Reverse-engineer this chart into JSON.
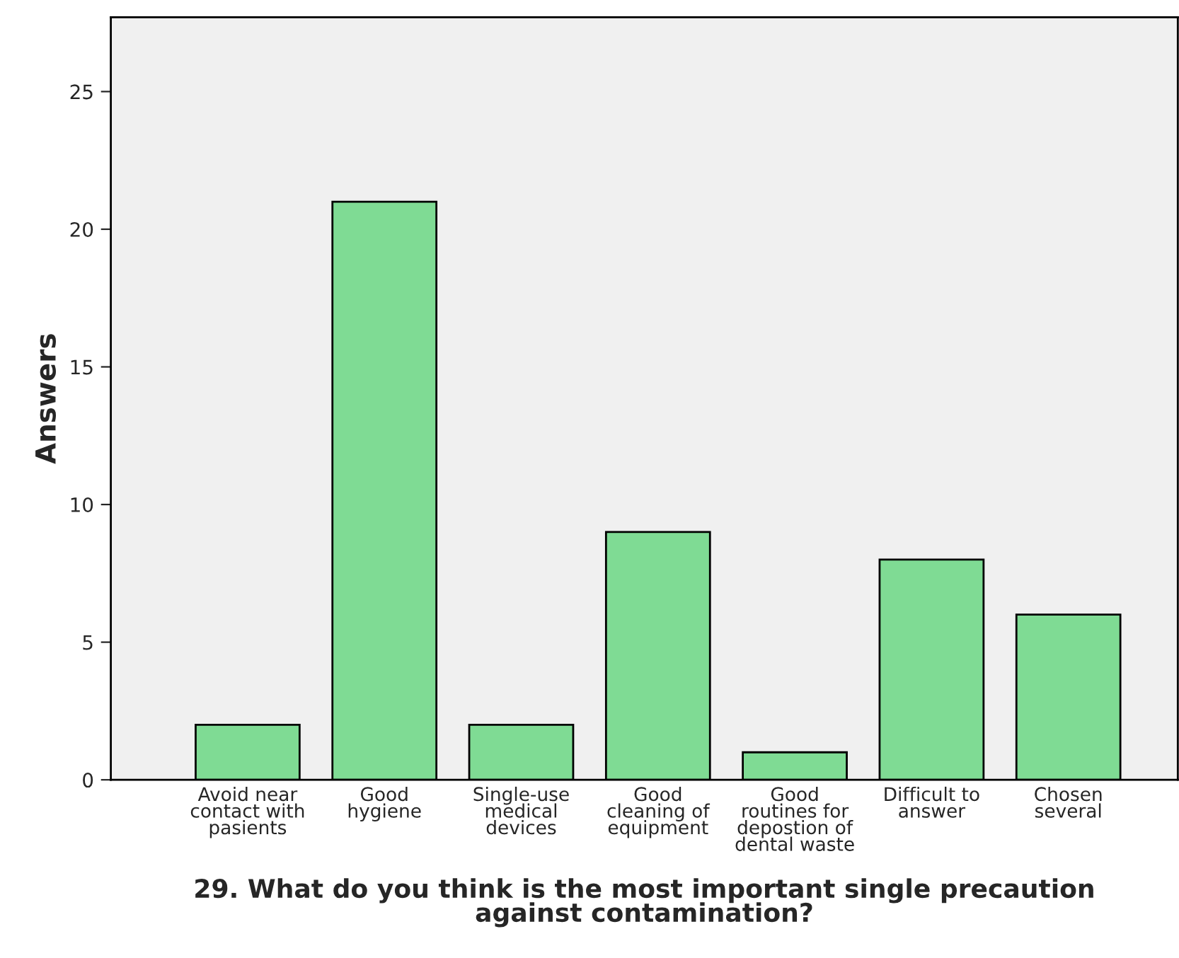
{
  "chart_data": {
    "type": "bar",
    "xlabel": "29. What do you think is the most important single precaution\nagainst contamination?",
    "ylabel": "Answers",
    "categories": [
      "Avoid near\ncontact with\npasients",
      "Good\nhygiene",
      "Single-use\nmedical\ndevices",
      "Good\ncleaning of\nequipment",
      "Good\nroutines for\ndepostion of\ndental waste",
      "Difficult to\nanswer",
      "Chosen\nseveral"
    ],
    "values": [
      2,
      21,
      2,
      9,
      1,
      8,
      6
    ],
    "color": "#7fdb94",
    "ylim": [
      0,
      27.7
    ],
    "yticks": [
      0,
      5,
      10,
      15,
      20,
      25
    ],
    "grid": false,
    "legend": false
  }
}
